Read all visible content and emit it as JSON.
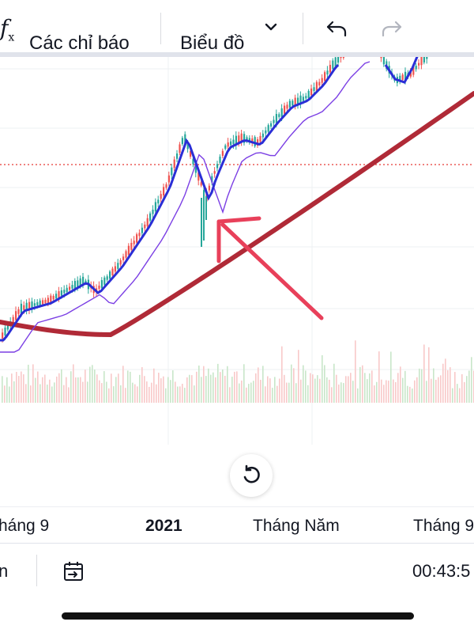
{
  "toolbar": {
    "formula_icon": "fx-icon",
    "indicators_label": "Các chỉ báo",
    "chart_type_label": "Biểu đồ",
    "chart_type_icon": "chevron-down-icon",
    "undo_icon": "undo-icon",
    "redo_icon": "redo-icon"
  },
  "chart": {
    "colors": {
      "up": "#26a69a",
      "down": "#ef5350",
      "fast_ma": "#2a2ed6",
      "slow_ma": "#7b3fe4",
      "long_ma": "#b02a37",
      "price_line": "#e53935",
      "annotation_arrow": "#e8405a"
    },
    "annotation": "red-arrow pointing to pullback"
  },
  "reset_button": {
    "icon": "reset-icon"
  },
  "time_axis": {
    "labels": [
      "háng 9",
      "2021",
      "Tháng Năm",
      "Tháng 9"
    ]
  },
  "bottom_bar": {
    "left_label": "n",
    "goto_icon": "goto-date-icon",
    "clock": "00:43:5"
  }
}
